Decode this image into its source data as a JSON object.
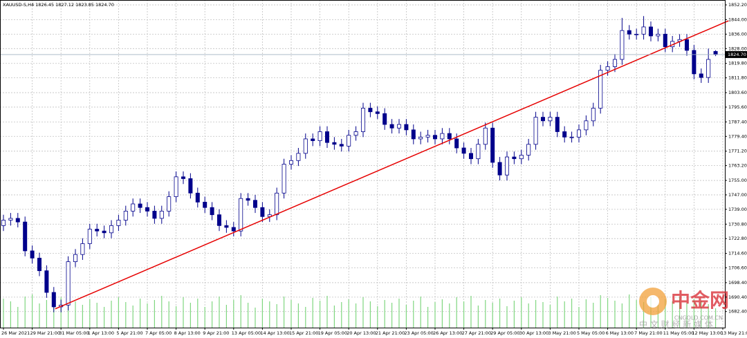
{
  "chart_data": {
    "type": "candlestick",
    "title": "XAUUSD-S,H4  1826.45 1827.12 1823.85 1824.70",
    "open": [
      1730,
      1733,
      1734,
      1732,
      1716,
      1712,
      1705,
      1693,
      1685,
      1686,
      1710,
      1714,
      1720,
      1728,
      1727,
      1726,
      1730,
      1733,
      1738,
      1742,
      1740,
      1738,
      1734,
      1738,
      1746,
      1757,
      1756,
      1748,
      1743,
      1740,
      1736,
      1730,
      1729,
      1727,
      1745,
      1744,
      1740,
      1735,
      1736,
      1748,
      1764,
      1766,
      1770,
      1778,
      1777,
      1782,
      1776,
      1775,
      1774,
      1780,
      1782,
      1795,
      1793,
      1792,
      1786,
      1784,
      1786,
      1783,
      1778,
      1779,
      1780,
      1778,
      1781,
      1778,
      1773,
      1770,
      1767,
      1775,
      1784,
      1765,
      1758,
      1768,
      1767,
      1769,
      1775,
      1790,
      1788,
      1790,
      1782,
      1779,
      1779,
      1783,
      1788,
      1795,
      1816,
      1818,
      1822,
      1838,
      1836,
      1836,
      1840,
      1835,
      1836,
      1829,
      1832,
      1833,
      1827,
      1814,
      1812,
      1826.45
    ],
    "high": [
      1736,
      1737,
      1737,
      1735,
      1719,
      1715,
      1708,
      1696,
      1689,
      1713,
      1717,
      1723,
      1731,
      1731,
      1730,
      1733,
      1736,
      1741,
      1745,
      1745,
      1743,
      1741,
      1741,
      1749,
      1760,
      1760,
      1759,
      1751,
      1746,
      1743,
      1739,
      1733,
      1732,
      1748,
      1748,
      1747,
      1743,
      1739,
      1751,
      1767,
      1769,
      1773,
      1781,
      1781,
      1785,
      1785,
      1779,
      1778,
      1783,
      1785,
      1798,
      1798,
      1796,
      1795,
      1789,
      1789,
      1789,
      1786,
      1782,
      1783,
      1783,
      1784,
      1784,
      1781,
      1776,
      1773,
      1778,
      1787,
      1787,
      1768,
      1771,
      1771,
      1772,
      1778,
      1793,
      1793,
      1793,
      1793,
      1785,
      1782,
      1786,
      1791,
      1798,
      1819,
      1821,
      1825,
      1845,
      1841,
      1839,
      1846,
      1843,
      1839,
      1839,
      1835,
      1836,
      1836,
      1830,
      1817,
      1828,
      1827.12
    ],
    "low": [
      1727,
      1730,
      1729,
      1713,
      1709,
      1702,
      1690,
      1682,
      1682,
      1683,
      1707,
      1711,
      1717,
      1724,
      1723,
      1723,
      1727,
      1730,
      1735,
      1737,
      1735,
      1731,
      1731,
      1735,
      1743,
      1753,
      1745,
      1740,
      1737,
      1733,
      1727,
      1726,
      1724,
      1724,
      1741,
      1737,
      1732,
      1732,
      1733,
      1745,
      1761,
      1763,
      1767,
      1774,
      1774,
      1773,
      1772,
      1771,
      1771,
      1777,
      1779,
      1790,
      1789,
      1783,
      1781,
      1781,
      1780,
      1775,
      1775,
      1776,
      1775,
      1775,
      1775,
      1770,
      1767,
      1764,
      1764,
      1772,
      1762,
      1755,
      1755,
      1764,
      1764,
      1766,
      1772,
      1785,
      1785,
      1779,
      1776,
      1776,
      1776,
      1780,
      1785,
      1792,
      1813,
      1815,
      1819,
      1833,
      1833,
      1833,
      1832,
      1832,
      1826,
      1826,
      1829,
      1824,
      1811,
      1809,
      1809,
      1823.85
    ],
    "close": [
      1733,
      1734,
      1732,
      1716,
      1712,
      1705,
      1693,
      1685,
      1686,
      1710,
      1714,
      1720,
      1728,
      1727,
      1726,
      1730,
      1733,
      1738,
      1742,
      1740,
      1738,
      1734,
      1738,
      1746,
      1757,
      1756,
      1748,
      1743,
      1740,
      1736,
      1730,
      1729,
      1727,
      1745,
      1744,
      1740,
      1735,
      1736,
      1748,
      1764,
      1766,
      1770,
      1778,
      1777,
      1782,
      1776,
      1775,
      1774,
      1780,
      1782,
      1795,
      1793,
      1792,
      1786,
      1784,
      1786,
      1783,
      1778,
      1779,
      1780,
      1778,
      1781,
      1778,
      1773,
      1770,
      1767,
      1775,
      1784,
      1765,
      1758,
      1768,
      1767,
      1769,
      1775,
      1790,
      1788,
      1790,
      1782,
      1779,
      1779,
      1783,
      1788,
      1795,
      1816,
      1818,
      1822,
      1838,
      1836,
      1836,
      1840,
      1835,
      1836,
      1829,
      1832,
      1833,
      1827,
      1814,
      1812,
      1822,
      1824.7
    ],
    "volume": [
      42,
      38,
      30,
      45,
      48,
      35,
      40,
      50,
      44,
      46,
      38,
      33,
      41,
      36,
      30,
      39,
      44,
      37,
      32,
      42,
      35,
      40,
      46,
      38,
      31,
      44,
      36,
      42,
      30,
      38,
      45,
      33,
      40,
      47,
      36,
      29,
      42,
      38,
      34,
      45,
      40,
      35,
      30,
      43,
      39,
      46,
      32,
      37,
      41,
      35,
      44,
      38,
      31,
      40,
      36,
      42,
      33,
      39,
      45,
      30,
      37,
      41,
      35,
      44,
      38,
      46,
      32,
      40,
      36,
      42,
      31,
      39,
      44,
      35,
      40,
      37,
      33,
      45,
      38,
      42,
      30,
      41,
      36,
      47,
      43,
      39,
      35,
      48,
      40,
      37,
      44,
      33,
      41,
      38,
      45,
      36,
      42,
      39,
      34,
      28
    ],
    "volume_lim": [
      0,
      100
    ],
    "up_color": "#ffffff",
    "down_color": "#00008b",
    "volume_color": "#7fd67f",
    "trendline": {
      "x": [
        7.2,
        100.8
      ],
      "y": [
        1683.9,
        1843.4
      ],
      "color": "#e60000"
    },
    "current_price": {
      "value": 1824.7,
      "label": "1824.70"
    },
    "xlim": [
      -0.48,
      100.29
    ],
    "ylim": [
      1673.5,
      1854.9
    ],
    "grid": true,
    "yticks": [
      {
        "value": 1852.2,
        "label": "1852.20"
      },
      {
        "value": 1844,
        "label": "1844.00"
      },
      {
        "value": 1836,
        "label": "1836.00"
      },
      {
        "value": 1828,
        "label": "1828.00"
      },
      {
        "value": 1819.8,
        "label": "1819.80"
      },
      {
        "value": 1811.8,
        "label": "1811.80"
      },
      {
        "value": 1803.6,
        "label": "1803.60"
      },
      {
        "value": 1795.6,
        "label": "1795.60"
      },
      {
        "value": 1787.4,
        "label": "1787.40"
      },
      {
        "value": 1779.4,
        "label": "1779.40"
      },
      {
        "value": 1771.2,
        "label": "1771.20"
      },
      {
        "value": 1763.2,
        "label": "1763.20"
      },
      {
        "value": 1755,
        "label": "1755.00"
      },
      {
        "value": 1747,
        "label": "1747.00"
      },
      {
        "value": 1739,
        "label": "1739.00"
      },
      {
        "value": 1730.8,
        "label": "1730.80"
      },
      {
        "value": 1722.8,
        "label": "1722.80"
      },
      {
        "value": 1714.6,
        "label": "1714.60"
      },
      {
        "value": 1706.6,
        "label": "1706.60"
      },
      {
        "value": 1698.4,
        "label": "1698.40"
      },
      {
        "value": 1690.4,
        "label": "1690.40"
      },
      {
        "value": 1682.4,
        "label": "1682.40"
      }
    ],
    "xticks": [
      {
        "value": 0,
        "label": "26 Mar 2021"
      },
      {
        "value": 4,
        "label": "29 Mar 21:00"
      },
      {
        "value": 8,
        "label": "31 Mar 05:00"
      },
      {
        "value": 12,
        "label": "1 Apr 13:00"
      },
      {
        "value": 16,
        "label": "5 Apr 21:00"
      },
      {
        "value": 20,
        "label": "7 Apr 05:00"
      },
      {
        "value": 24,
        "label": "8 Apr 13:00"
      },
      {
        "value": 28,
        "label": "9 Apr 21:00"
      },
      {
        "value": 32,
        "label": "13 Apr 05:00"
      },
      {
        "value": 36,
        "label": "14 Apr 13:00"
      },
      {
        "value": 40,
        "label": "15 Apr 21:00"
      },
      {
        "value": 44,
        "label": "19 Apr 05:00"
      },
      {
        "value": 48,
        "label": "20 Apr 13:00"
      },
      {
        "value": 52,
        "label": "21 Apr 21:00"
      },
      {
        "value": 56,
        "label": "23 Apr 05:00"
      },
      {
        "value": 60,
        "label": "26 Apr 13:00"
      },
      {
        "value": 64,
        "label": "27 Apr 21:00"
      },
      {
        "value": 68,
        "label": "29 Apr 05:00"
      },
      {
        "value": 72,
        "label": "30 Apr 13:00"
      },
      {
        "value": 76,
        "label": "3 May 21:00"
      },
      {
        "value": 80,
        "label": "5 May 05:00"
      },
      {
        "value": 84,
        "label": "6 May 13:00"
      },
      {
        "value": 88,
        "label": "7 May 21:00"
      },
      {
        "value": 92,
        "label": "11 May 05:00"
      },
      {
        "value": 96,
        "label": "12 May 13:00"
      },
      {
        "value": 100,
        "label": "13 May 21:00"
      }
    ],
    "watermark": {
      "name": "中金网",
      "url": "CNGOLD.COM.CN",
      "tagline": "中 文 财 经 新 媒 体"
    }
  }
}
